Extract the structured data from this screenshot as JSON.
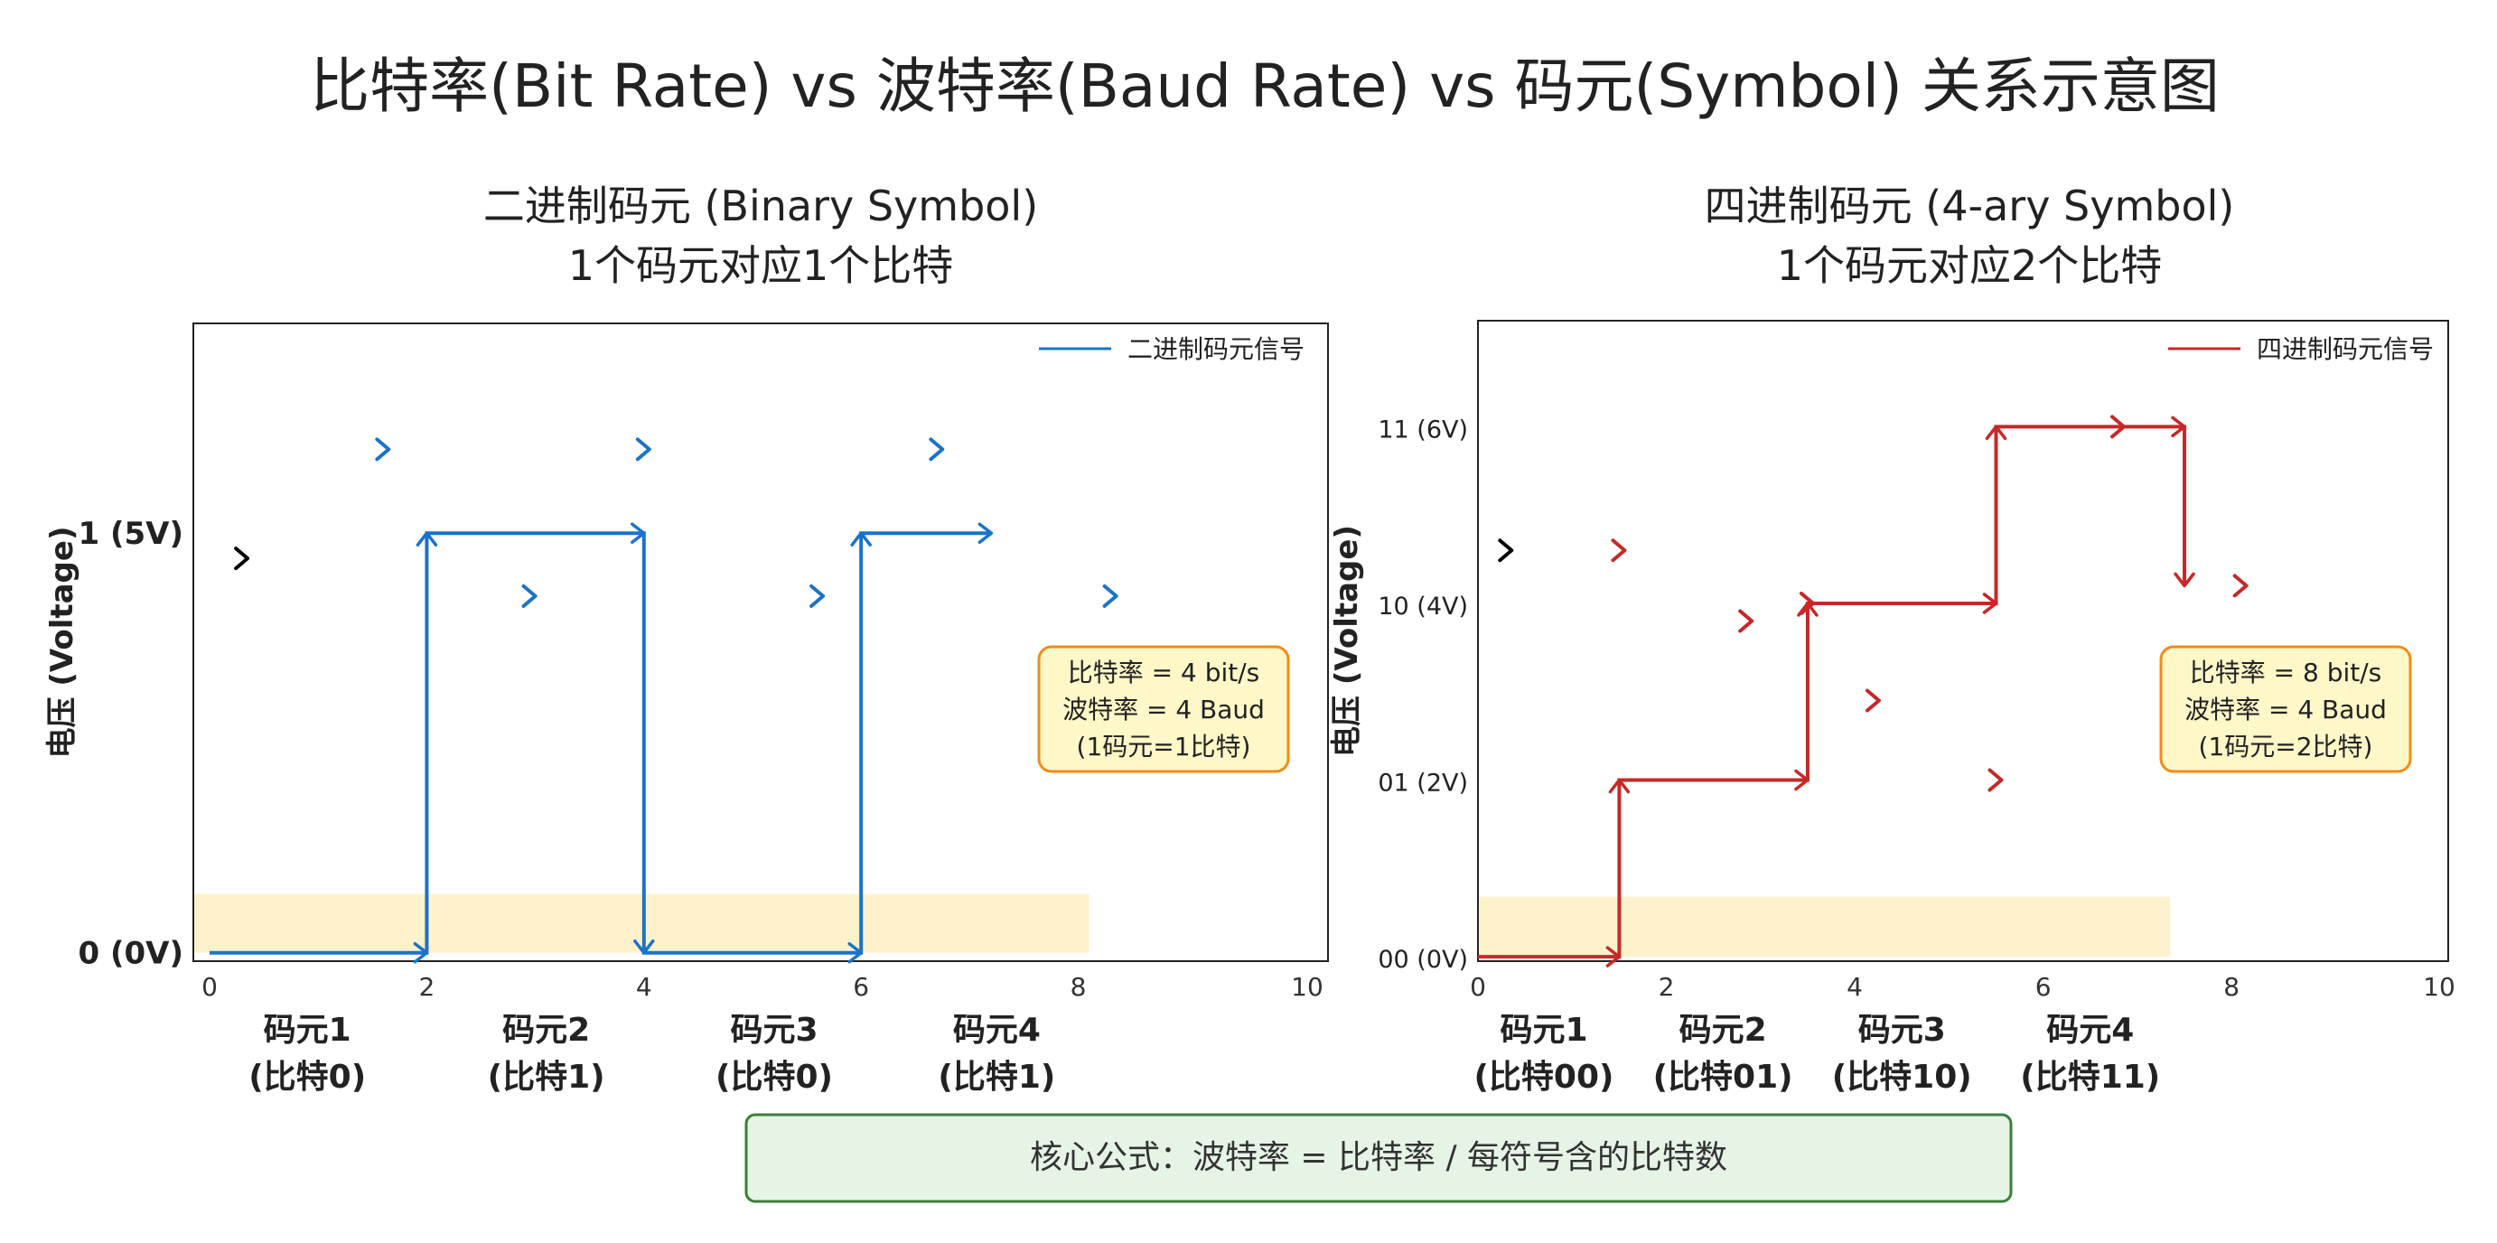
{
  "title": "比特率(Bit Rate) vs 波特率(Baud Rate) vs 码元(Symbol) 关系示意图",
  "formula": "核心公式：波特率 = 比特率 / 每符号含的比特数",
  "colors": {
    "binary": "#1a73c8",
    "quaternary": "#c62828",
    "black_arrow": "#000000",
    "shade": "#fdf2cc",
    "info_bg": "#fef7c7",
    "info_border": "#f08c1a",
    "formula_bg": "#e6f4e6",
    "formula_border": "#3a7f3a"
  },
  "chart_data": [
    {
      "type": "line",
      "subtitle_line1": "二进制码元  (Binary Symbol)",
      "subtitle_line2": "1个码元对应1个比特",
      "ylabel": "电压 (Voltage)",
      "xlim": [
        -0.15,
        10.3
      ],
      "ylim": [
        -0.02,
        1.5
      ],
      "x_ticks": [
        "0",
        "2",
        "4",
        "6",
        "8",
        "10"
      ],
      "x_tick_values": [
        0,
        2,
        4,
        6,
        8,
        10
      ],
      "y_tick_labels": [
        "0 (0V)",
        "1 (5V)"
      ],
      "y_tick_values": [
        0,
        1
      ],
      "legend": "二进制码元信号",
      "legend_position": "top-right",
      "series": [
        {
          "name": "二进制码元信号",
          "points": [
            [
              0,
              0
            ],
            [
              2,
              0
            ],
            [
              2,
              1
            ],
            [
              4,
              1
            ],
            [
              4,
              0
            ],
            [
              6,
              0
            ],
            [
              6,
              1
            ],
            [
              7.2,
              1
            ]
          ]
        }
      ],
      "shaded_span": {
        "x": [
          -0.15,
          8.1
        ],
        "y": [
          0,
          0.14
        ]
      },
      "symbol_labels": [
        {
          "x": 0.9,
          "line1": "码元1",
          "line2": "(比特0)"
        },
        {
          "x": 3.1,
          "line1": "码元2",
          "line2": "(比特1)"
        },
        {
          "x": 5.2,
          "line1": "码元3",
          "line2": "(比特0)"
        },
        {
          "x": 7.25,
          "line1": "码元4",
          "line2": "(比特1)"
        }
      ],
      "black_markers": [
        [
          0.3,
          0.94
        ]
      ],
      "colored_markers": [
        [
          1.6,
          1.2
        ],
        [
          4.0,
          1.2
        ],
        [
          6.7,
          1.2
        ],
        [
          2.95,
          0.85
        ],
        [
          5.6,
          0.85
        ],
        [
          8.3,
          0.85
        ]
      ],
      "info_lines": [
        "比特率 = 4 bit/s",
        "波特率 = 4 Baud",
        "(1码元=1比特)"
      ]
    },
    {
      "type": "line",
      "subtitle_line1": "四进制码元  (4-ary Symbol)",
      "subtitle_line2": "1个码元对应2个比特",
      "ylabel": "电压 (Voltage)",
      "xlim": [
        0,
        10.3
      ],
      "ylim": [
        -0.05,
        7.2
      ],
      "x_ticks": [
        "0",
        "2",
        "4",
        "6",
        "8",
        "10"
      ],
      "x_tick_values": [
        0,
        2,
        4,
        6,
        8,
        10
      ],
      "y_tick_labels": [
        "00 (0V)",
        "01 (2V)",
        "10 (4V)",
        "11 (6V)"
      ],
      "y_tick_values": [
        0,
        2,
        4,
        6
      ],
      "legend": "四进制码元信号",
      "legend_position": "top-right",
      "series": [
        {
          "name": "四进制码元信号",
          "points": [
            [
              0,
              0
            ],
            [
              1.5,
              0
            ],
            [
              1.5,
              2
            ],
            [
              3.5,
              2
            ],
            [
              3.5,
              4
            ],
            [
              5.5,
              4
            ],
            [
              5.5,
              6
            ],
            [
              7.5,
              6
            ],
            [
              7.5,
              4.2
            ]
          ]
        }
      ],
      "shaded_span": {
        "x": [
          0,
          7.35
        ],
        "y": [
          0,
          0.68
        ]
      },
      "symbol_labels": [
        {
          "x": 0.7,
          "line1": "码元1",
          "line2": "(比特00)"
        },
        {
          "x": 2.6,
          "line1": "码元2",
          "line2": "(比特01)"
        },
        {
          "x": 4.5,
          "line1": "码元3",
          "line2": "(比特10)"
        },
        {
          "x": 6.5,
          "line1": "码元4",
          "line2": "(比特11)"
        }
      ],
      "black_markers": [
        [
          0.3,
          4.6
        ]
      ],
      "colored_markers": [
        [
          1.5,
          4.6
        ],
        [
          2.85,
          3.8
        ],
        [
          4.2,
          2.9
        ],
        [
          5.5,
          2.0
        ],
        [
          6.8,
          6.0
        ],
        [
          8.1,
          4.2
        ],
        [
          3.5,
          4.0
        ]
      ],
      "info_lines": [
        "比特率 = 8 bit/s",
        "波特率 = 4 Baud",
        "(1码元=2比特)"
      ]
    }
  ]
}
